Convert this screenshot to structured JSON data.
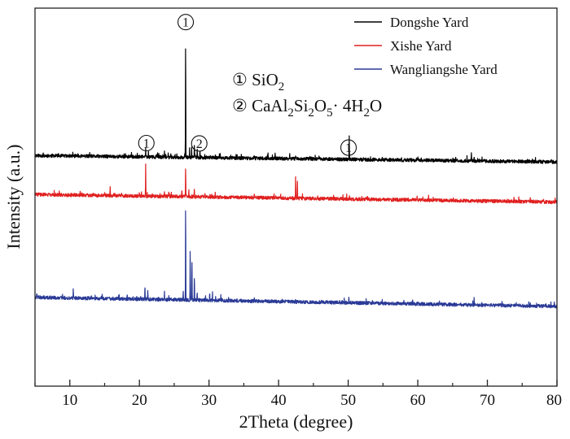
{
  "chart_data": {
    "type": "line",
    "title": "",
    "xlabel": "2Theta (degree)",
    "ylabel": "Intensity (a.u.)",
    "xlim": [
      5,
      80
    ],
    "ylim": [
      0,
      100
    ],
    "xticks": [
      10,
      20,
      30,
      40,
      50,
      60,
      70,
      80
    ],
    "xtick_labels": [
      "10",
      "20",
      "30",
      "40",
      "50",
      "60",
      "70",
      "80"
    ],
    "grid": false,
    "legend_position": "top-right",
    "series": [
      {
        "name": "Dongshe Yard",
        "color": "#000000",
        "baseline": 61,
        "baseline_end": 59.3,
        "noise": 0.45,
        "seed": 11,
        "peaks": [
          [
            20.9,
            2.5
          ],
          [
            21.3,
            1.2
          ],
          [
            22.8,
            0.6
          ],
          [
            23.6,
            1.4
          ],
          [
            24.5,
            0.7
          ],
          [
            26.64,
            32.5
          ],
          [
            27.2,
            1.3
          ],
          [
            27.5,
            2.6
          ],
          [
            27.9,
            3.6
          ],
          [
            28.3,
            2.0
          ],
          [
            28.7,
            1.6
          ],
          [
            29.4,
            0.9
          ],
          [
            30.2,
            0.8
          ],
          [
            30.9,
            1.0
          ],
          [
            31.6,
            1.0
          ],
          [
            36.5,
            1.0
          ],
          [
            39.5,
            1.2
          ],
          [
            42.5,
            0.8
          ],
          [
            45.8,
            0.7
          ],
          [
            50.15,
            5.8
          ],
          [
            54.9,
            0.8
          ],
          [
            60.0,
            0.8
          ],
          [
            67.7,
            2.2
          ],
          [
            68.1,
            1.2
          ]
        ]
      },
      {
        "name": "Xishe Yard",
        "color": "#e02020",
        "baseline": 50.7,
        "baseline_end": 48.7,
        "noise": 0.45,
        "seed": 29,
        "peaks": [
          [
            11.5,
            1.0
          ],
          [
            15.8,
            2.4
          ],
          [
            20.0,
            1.0
          ],
          [
            20.9,
            8.7
          ],
          [
            23.6,
            1.1
          ],
          [
            24.2,
            1.4
          ],
          [
            26.1,
            1.6
          ],
          [
            26.64,
            8.7
          ],
          [
            27.1,
            1.6
          ],
          [
            27.9,
            2.4
          ],
          [
            29.4,
            1.0
          ],
          [
            30.9,
            1.0
          ],
          [
            36.5,
            1.0
          ],
          [
            42.45,
            6.1
          ],
          [
            42.7,
            4.7
          ],
          [
            50.2,
            1.2
          ],
          [
            54.9,
            0.6
          ],
          [
            59.9,
            0.6
          ]
        ]
      },
      {
        "name": "Wangliangshe Yard",
        "color": "#2a3a96",
        "baseline": 23.5,
        "baseline_end": 21.1,
        "noise": 0.45,
        "seed": 47,
        "peaks": [
          [
            10.5,
            2.4
          ],
          [
            20.8,
            3.9
          ],
          [
            21.2,
            1.9
          ],
          [
            23.6,
            2.0
          ],
          [
            26.3,
            1.9
          ],
          [
            26.64,
            27.1
          ],
          [
            27.3,
            14.4
          ],
          [
            27.55,
            10.9
          ],
          [
            27.9,
            6.4
          ],
          [
            28.3,
            2.4
          ],
          [
            29.5,
            1.5
          ],
          [
            30.1,
            2.3
          ],
          [
            30.5,
            1.8
          ],
          [
            31.7,
            1.3
          ],
          [
            36.5,
            1.0
          ],
          [
            42.4,
            1.0
          ],
          [
            50.1,
            1.2
          ],
          [
            60.0,
            0.7
          ],
          [
            68.1,
            0.7
          ]
        ]
      }
    ],
    "peak_markers": [
      {
        "label": "①",
        "x": 21.0,
        "y": 64.3
      },
      {
        "label": "①",
        "x": 26.65,
        "y": 96.3
      },
      {
        "label": "②",
        "x": 28.6,
        "y": 64.2
      },
      {
        "label": "①",
        "x": 50.05,
        "y": 63.1
      }
    ],
    "annotations": [
      {
        "parts": [
          {
            "t": "① SiO"
          },
          {
            "t": "2",
            "sub": true
          }
        ]
      },
      {
        "parts": [
          {
            "t": "② CaAl"
          },
          {
            "t": "2",
            "sub": true
          },
          {
            "t": "Si"
          },
          {
            "t": "2",
            "sub": true
          },
          {
            "t": "O"
          },
          {
            "t": "5",
            "sub": true
          },
          {
            "t": "· 4H"
          },
          {
            "t": "2",
            "sub": true
          },
          {
            "t": "O"
          }
        ]
      }
    ]
  }
}
